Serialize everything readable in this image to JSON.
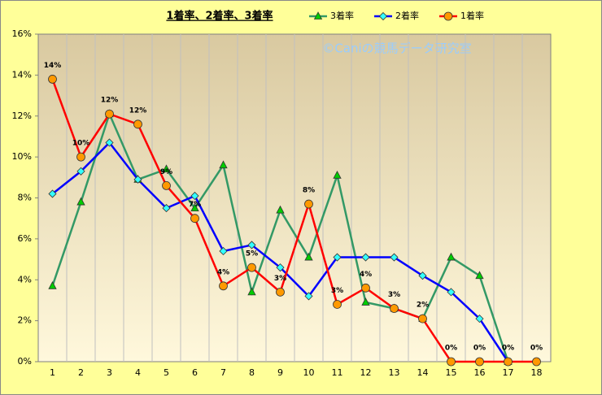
{
  "chart_data": {
    "type": "line",
    "title": "1着率、2着率、3着率",
    "watermark": "©Caniの競馬データ研究室",
    "categories": [
      "1",
      "2",
      "3",
      "4",
      "5",
      "6",
      "7",
      "8",
      "9",
      "10",
      "11",
      "12",
      "13",
      "14",
      "15",
      "16",
      "17",
      "18"
    ],
    "series": [
      {
        "name": "3着率",
        "color": "#339966",
        "marker": "triangle",
        "marker_color": "#00cc00",
        "values": [
          3.7,
          7.8,
          12.1,
          8.9,
          9.4,
          7.5,
          9.6,
          3.4,
          7.4,
          5.1,
          9.1,
          2.9,
          2.6,
          2.1,
          5.1,
          4.2,
          0,
          null
        ]
      },
      {
        "name": "2着率",
        "color": "#0000ff",
        "marker": "diamond",
        "marker_color": "#33ffff",
        "values": [
          8.2,
          9.3,
          10.7,
          8.9,
          7.5,
          8.1,
          5.4,
          5.7,
          4.6,
          3.2,
          5.1,
          5.1,
          5.1,
          4.2,
          3.4,
          2.1,
          0,
          null
        ]
      },
      {
        "name": "1着率",
        "color": "#ff0000",
        "marker": "circle",
        "marker_color": "#ff9900",
        "values": [
          13.8,
          10.0,
          12.1,
          11.6,
          8.6,
          7.0,
          3.7,
          4.6,
          3.4,
          7.7,
          2.8,
          3.6,
          2.6,
          2.1,
          0,
          0,
          0,
          0
        ],
        "value_labels": [
          "14%",
          "10%",
          "12%",
          "12%",
          "9%",
          "7%",
          "4%",
          "5%",
          "3%",
          "8%",
          "3%",
          "4%",
          "3%",
          "2%",
          "0%",
          "0%",
          "0%",
          "0%"
        ]
      }
    ],
    "ylim": [
      0,
      16
    ],
    "yticks": [
      {
        "value": 0,
        "label": "0%"
      },
      {
        "value": 2,
        "label": "2%"
      },
      {
        "value": 4,
        "label": "4%"
      },
      {
        "value": 6,
        "label": "6%"
      },
      {
        "value": 8,
        "label": "8%"
      },
      {
        "value": 10,
        "label": "10%"
      },
      {
        "value": 12,
        "label": "12%"
      },
      {
        "value": 14,
        "label": "14%"
      },
      {
        "value": 16,
        "label": "16%"
      }
    ],
    "grid": "x"
  }
}
